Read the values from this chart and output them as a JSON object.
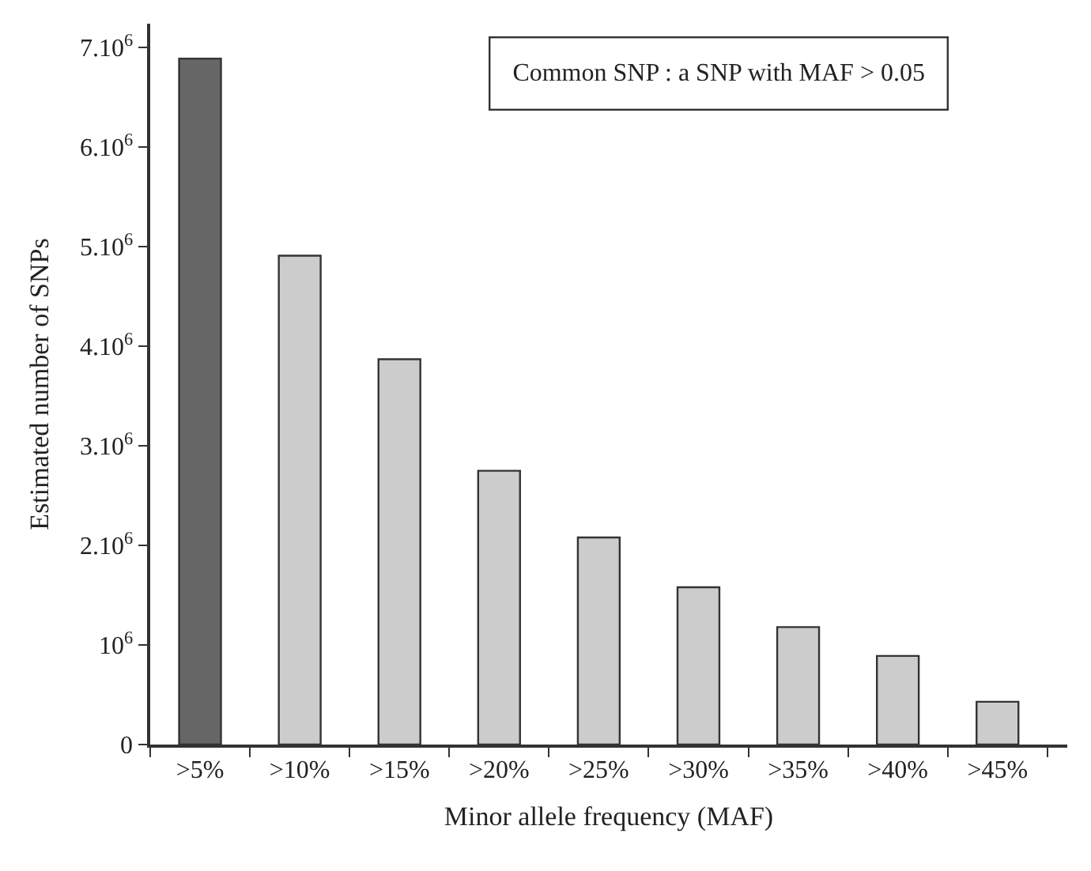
{
  "chart_data": {
    "type": "bar",
    "xlabel": "Minor allele frequency (MAF)",
    "ylabel": "Estimated number of SNPs",
    "categories": [
      ">5%",
      ">10%",
      ">15%",
      ">20%",
      ">25%",
      ">30%",
      ">35%",
      ">40%",
      ">45%"
    ],
    "values": [
      6890000,
      4910000,
      3870000,
      2750000,
      2080000,
      1580000,
      1180000,
      890000,
      430000
    ],
    "colors": [
      "#666666",
      "#cccccc",
      "#cccccc",
      "#cccccc",
      "#cccccc",
      "#cccccc",
      "#cccccc",
      "#cccccc",
      "#cccccc"
    ],
    "ylim": [
      0,
      7240000
    ],
    "yticks": [
      0,
      {
        "value": 1000000,
        "label": "10$^{6}$"
      },
      {
        "value": 2000000,
        "label": "2.10$^{6}$"
      },
      {
        "value": 3000000,
        "label": "3.10$^{6}$"
      },
      {
        "value": 4000000,
        "label": "4.10$^{6}$"
      },
      {
        "value": 5000000,
        "label": "5.10$^{6}$"
      },
      {
        "value": 6000000,
        "label": "6.10$^{6}$"
      },
      {
        "value": 7000000,
        "label": "7.10$^{6}$"
      }
    ],
    "annotations": [
      "Common SNP : a SNP with MAF > 0.05"
    ]
  }
}
